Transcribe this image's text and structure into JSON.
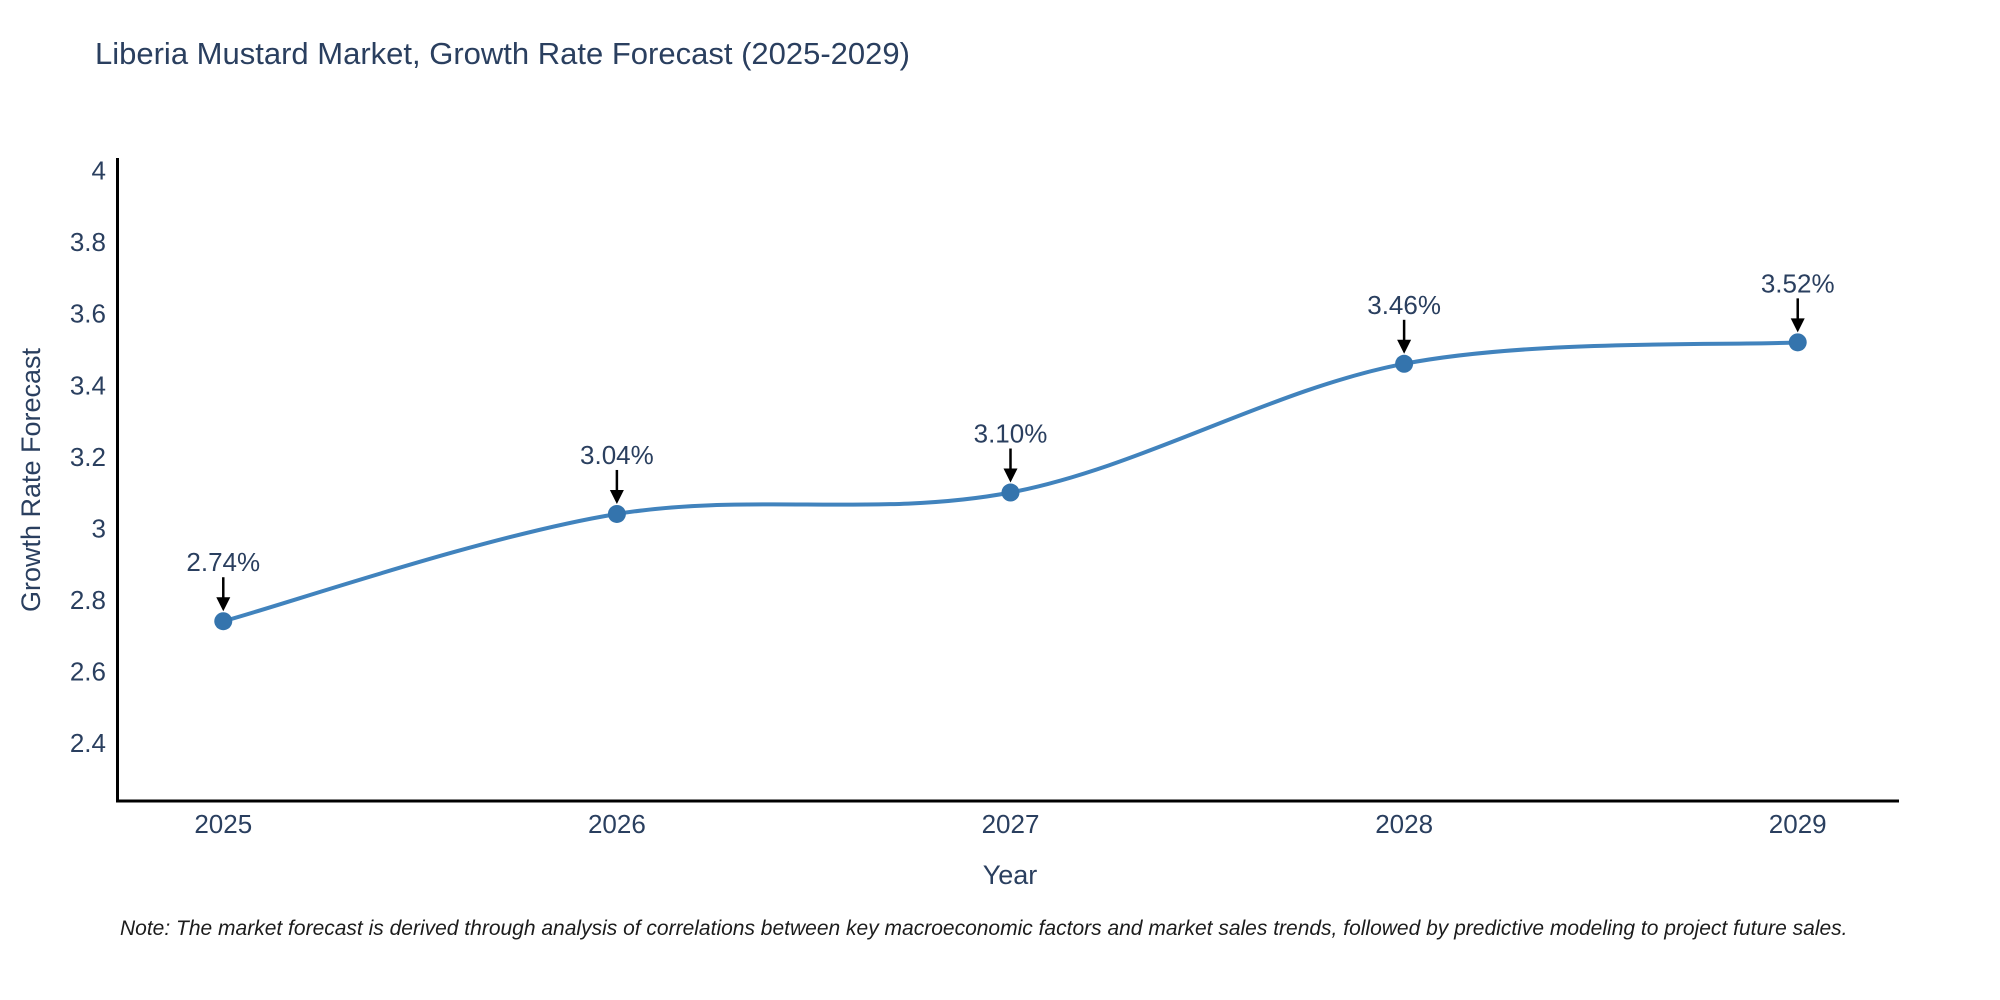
{
  "title": "Liberia Mustard Market, Growth Rate Forecast (2025-2029)",
  "note": {
    "text": "Note: The market forecast is derived through analysis of correlations between key macroeconomic factors and market sales trends, followed by predictive modeling to project future sales."
  },
  "chart_data": {
    "type": "line",
    "title": "Liberia Mustard Market, Growth Rate Forecast (2025-2029)",
    "xlabel": "Year",
    "ylabel": "Growth Rate Forecast",
    "x": [
      2025,
      2026,
      2027,
      2028,
      2029
    ],
    "y": [
      2.74,
      3.04,
      3.1,
      3.46,
      3.52
    ],
    "point_labels": [
      "2.74%",
      "3.04%",
      "3.10%",
      "3.46%",
      "3.52%"
    ],
    "x_ticks": [
      "2025",
      "2026",
      "2027",
      "2028",
      "2029"
    ],
    "y_ticks": [
      "4",
      "3.8",
      "3.6",
      "3.4",
      "3.2",
      "3",
      "2.8",
      "2.6",
      "2.4"
    ],
    "x_range": [
      2024.73,
      2029.27
    ],
    "y_range": [
      2.24,
      4.03
    ],
    "line_shape": "spline",
    "grid": false,
    "legend": "none",
    "colors": {
      "line": "#4183bd",
      "marker": "#3474ad",
      "arrow": "#000000",
      "text": "#2a3f5f",
      "axis": "#000000"
    }
  }
}
